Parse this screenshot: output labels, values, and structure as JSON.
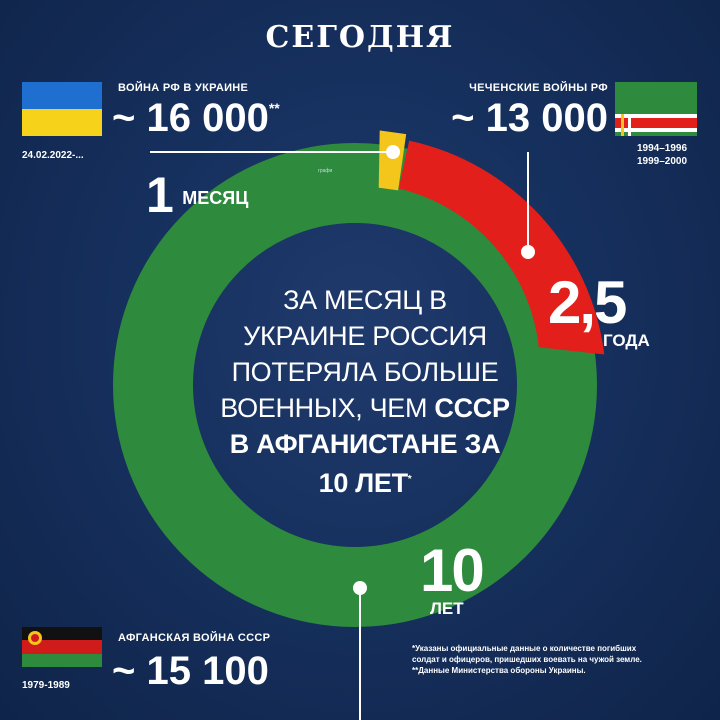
{
  "brand": "СЕГОДНЯ",
  "ukraine": {
    "title": "ВОЙНА РФ В УКРАИНЕ",
    "value": "~ 16 000",
    "footnote_mark": "**",
    "date": "24.02.2022-..."
  },
  "chechnya": {
    "title": "ЧЕЧЕНСКИЕ ВОЙНЫ РФ",
    "value": "~ 13 000",
    "dates_1": "1994–1996",
    "dates_2": "1999–2000"
  },
  "afghanistan": {
    "title": "АФГАНСКАЯ ВОЙНА СССР",
    "value": "~ 15 100",
    "dates": "1979-1989"
  },
  "segments": {
    "month_num": "1",
    "month_word": "МЕСЯЦ",
    "years_num": "2,5",
    "years_word": "ГОДА",
    "decade_num": "10",
    "decade_word": "ЛЕТ"
  },
  "center": {
    "line1": "ЗА МЕСЯЦ В",
    "line2": "УКРАИНЕ РОССИЯ",
    "line3": "ПОТЕРЯЛА БОЛЬШЕ",
    "line4_regular": "ВОЕННЫХ, ЧЕМ ",
    "line4_bold": "СССР",
    "line5": "В АФГАНИСТАНЕ ЗА",
    "line6": "10 ЛЕТ",
    "line6_mark": "*"
  },
  "notes": {
    "line1": "*Указаны официальные данные о количестве погибших",
    "line2": "солдат и офицеров, пришедших воевать на чужой земле.",
    "line3": "**Данные Министерства обороны Украины.",
    "tiny_label": "графи"
  },
  "colors": {
    "green": "#2e8a3c",
    "red": "#e21f1a",
    "yellow": "#f4c51a",
    "ukraine_blue": "#1e6fd0",
    "ukraine_yellow": "#f7d21b"
  }
}
